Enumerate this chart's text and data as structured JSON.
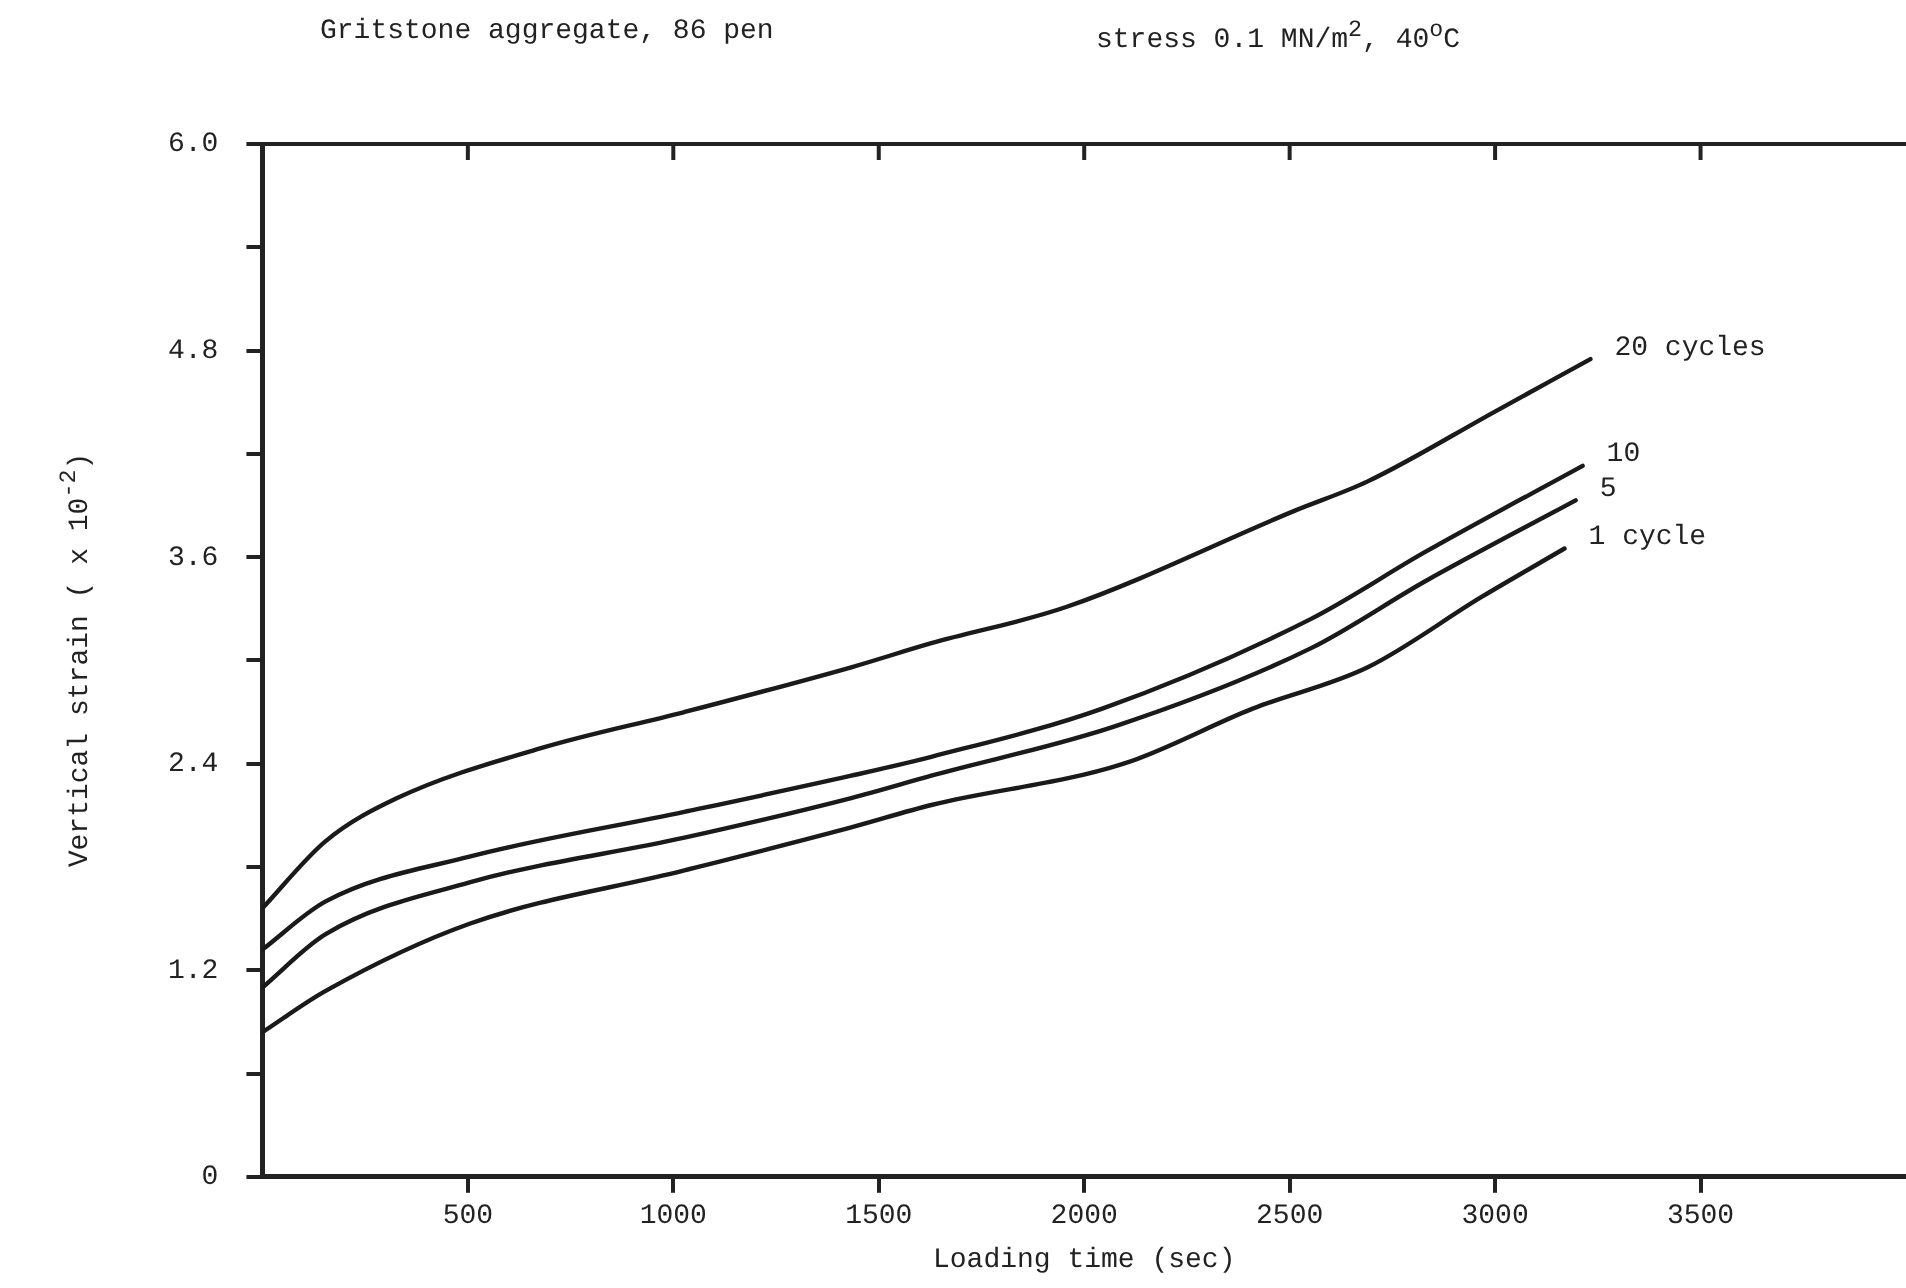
{
  "chart_data": {
    "type": "line",
    "title": "Gritstone aggregate, 86 pen",
    "subtitle": "stress 0.1 MN/m$^{2}$, 40$^{o}$C",
    "xlabel": "Loading time (sec)",
    "ylabel": "Vertical strain ( x 10$^{-2}$)",
    "xlim": [
      0,
      4000
    ],
    "xticks": [
      500,
      1000,
      1500,
      2000,
      2500,
      3000,
      3500
    ],
    "ylim": [
      0,
      6
    ],
    "yticks": [
      {
        "value": 0,
        "label": "0"
      },
      {
        "value": 0.6,
        "label": null
      },
      {
        "value": 1.2,
        "label": "1.2"
      },
      {
        "value": 1.8,
        "label": null
      },
      {
        "value": 2.4,
        "label": "2.4"
      },
      {
        "value": 3,
        "label": null
      },
      {
        "value": 3.6,
        "label": "3.6"
      },
      {
        "value": 4.2,
        "label": null
      },
      {
        "value": 4.8,
        "label": "4.8"
      },
      {
        "value": 5.4,
        "label": null
      },
      {
        "value": 6,
        "label": "6.0"
      }
    ],
    "grid": false,
    "legend": false,
    "marker": "none",
    "line_style": "solid",
    "series": [
      {
        "name": "20 cycles",
        "color": "#1a1a1a",
        "x": [
          0,
          154,
          328,
          678,
          1027,
          1433,
          1628,
          1956,
          2513,
          2690,
          3003,
          3232
        ],
        "values": [
          1.56,
          1.95,
          2.2,
          2.49,
          2.7,
          2.96,
          3.1,
          3.31,
          3.87,
          4.04,
          4.45,
          4.75
        ]
      },
      {
        "name": "10",
        "color": "#1a1a1a",
        "x": [
          0,
          154,
          504,
          1027,
          1433,
          1628,
          2044,
          2551,
          2830,
          3213
        ],
        "values": [
          1.32,
          1.6,
          1.86,
          2.12,
          2.33,
          2.44,
          2.72,
          3.24,
          3.63,
          4.13
        ]
      },
      {
        "name": "5",
        "color": "#1a1a1a",
        "x": [
          0,
          154,
          504,
          1027,
          1433,
          1628,
          2078,
          2551,
          2830,
          3196
        ],
        "values": [
          1.1,
          1.41,
          1.71,
          1.97,
          2.2,
          2.33,
          2.62,
          3.07,
          3.46,
          3.93
        ]
      },
      {
        "name": "1 cycle",
        "color": "#1a1a1a",
        "x": [
          0,
          154,
          504,
          1027,
          1433,
          1628,
          2096,
          2410,
          2690,
          2968,
          3169
        ],
        "values": [
          0.84,
          1.08,
          1.47,
          1.78,
          2.03,
          2.16,
          2.4,
          2.72,
          2.96,
          3.37,
          3.65
        ]
      }
    ]
  }
}
